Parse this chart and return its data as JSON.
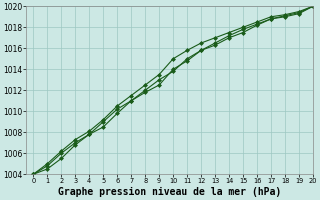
{
  "x": [
    0,
    1,
    2,
    3,
    4,
    5,
    6,
    7,
    8,
    9,
    10,
    11,
    12,
    13,
    14,
    15,
    16,
    17,
    18,
    19,
    20
  ],
  "line1": [
    1004,
    1005.0,
    1006.2,
    1007.3,
    1008.1,
    1009.2,
    1010.5,
    1011.5,
    1012.5,
    1013.5,
    1015.0,
    1015.8,
    1016.5,
    1017.0,
    1017.5,
    1018.0,
    1018.5,
    1019.0,
    1019.2,
    1019.5,
    1020
  ],
  "line2": [
    1004,
    1004.8,
    1006.0,
    1007.0,
    1007.8,
    1009.0,
    1010.2,
    1011.0,
    1012.0,
    1013.0,
    1013.8,
    1015.0,
    1015.8,
    1016.5,
    1017.2,
    1017.8,
    1018.3,
    1018.8,
    1019.1,
    1019.4,
    1020
  ],
  "line3": [
    1004,
    1004.5,
    1005.5,
    1006.8,
    1007.8,
    1008.5,
    1009.8,
    1011.0,
    1011.8,
    1012.5,
    1014.0,
    1014.8,
    1015.8,
    1016.3,
    1017.0,
    1017.5,
    1018.2,
    1018.8,
    1019.0,
    1019.3,
    1020
  ],
  "bg_color": "#cce8e4",
  "grid_color": "#9ec8c2",
  "line_color": "#1a5c1a",
  "xlim": [
    -0.5,
    20
  ],
  "ylim": [
    1004,
    1020
  ],
  "yticks": [
    1004,
    1006,
    1008,
    1010,
    1012,
    1014,
    1016,
    1018,
    1020
  ],
  "xticks": [
    0,
    1,
    2,
    3,
    4,
    5,
    6,
    7,
    8,
    9,
    10,
    11,
    12,
    13,
    14,
    15,
    16,
    17,
    18,
    19,
    20
  ],
  "xlabel": "Graphe pression niveau de la mer (hPa)",
  "xlabel_fontsize": 7.0,
  "tick_fontsize": 5.5,
  "marker": "D",
  "marker_size": 2.0,
  "line_width": 0.8
}
